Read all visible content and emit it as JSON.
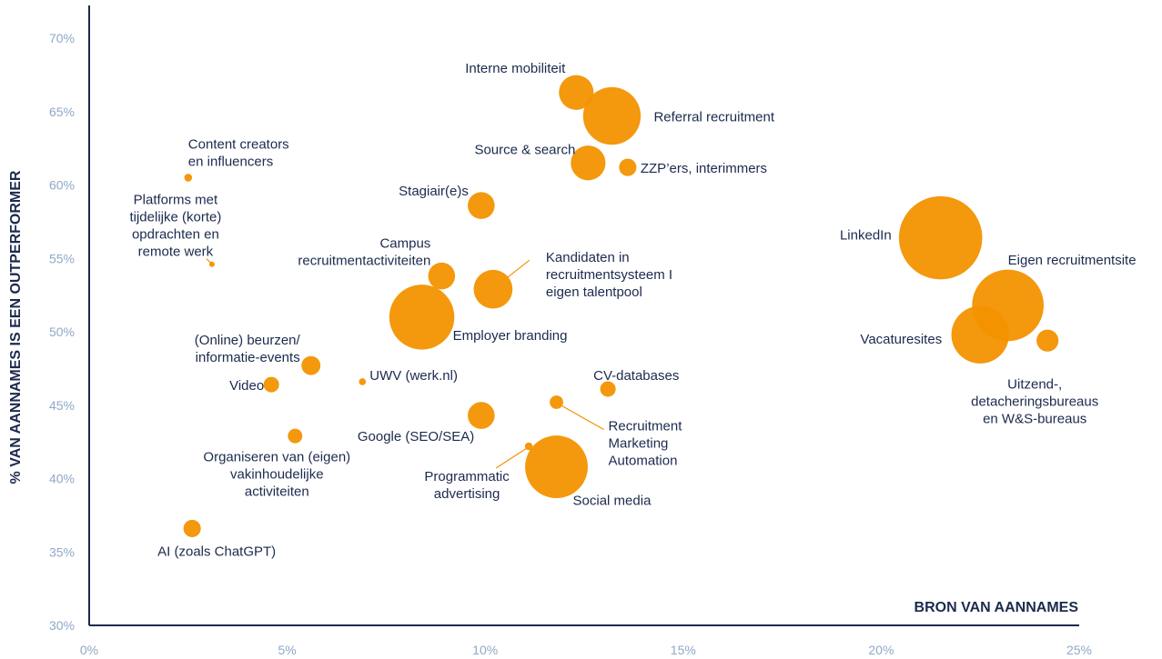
{
  "colors": {
    "bubble": "#f39200",
    "axis": "#1c2a4e",
    "tick": "#8fa8c8",
    "label": "#1c2a4e"
  },
  "chart_data": {
    "type": "scatter",
    "title": "",
    "xlabel": "BRON VAN AANNAMES",
    "ylabel": "% VAN AANNAMES IS EEN OUTPERFORMER",
    "xlim": [
      0,
      25
    ],
    "ylim": [
      30,
      71
    ],
    "x_ticks": [
      "0%",
      "5%",
      "10%",
      "15%",
      "20%",
      "25%"
    ],
    "y_ticks": [
      "30%",
      "35%",
      "40%",
      "45%",
      "50%",
      "55%",
      "60%",
      "65%",
      "70%"
    ],
    "grid": false,
    "points": [
      {
        "label": [
          "Interne mobiliteit"
        ],
        "x": 12.3,
        "y": 66.3,
        "size": 2.0
      },
      {
        "label": [
          "Referral recruitment"
        ],
        "x": 13.2,
        "y": 64.7,
        "size": 5.5
      },
      {
        "label": [
          "Source & search"
        ],
        "x": 12.6,
        "y": 61.5,
        "size": 2.0
      },
      {
        "label": [
          "ZZP’ers, interimmers"
        ],
        "x": 13.6,
        "y": 61.2,
        "size": 0.5
      },
      {
        "label": [
          "Content creators",
          "en influencers"
        ],
        "x": 2.5,
        "y": 60.5,
        "size": 0.1
      },
      {
        "label": [
          "Stagiair(e)s"
        ],
        "x": 9.9,
        "y": 58.6,
        "size": 1.2
      },
      {
        "label": [
          "Platforms met",
          "tijdelijke (korte)",
          "opdrachten en",
          "remote werk"
        ],
        "x": 3.1,
        "y": 54.6,
        "size": 0.05
      },
      {
        "label": [
          "Campus",
          "recruitmentactiviteiten"
        ],
        "x": 8.9,
        "y": 53.8,
        "size": 1.2
      },
      {
        "label": [
          "Kandidaten in",
          "recruitmentsysteem I",
          "eigen talentpool"
        ],
        "x": 10.2,
        "y": 52.9,
        "size": 2.5
      },
      {
        "label": [
          "Employer branding"
        ],
        "x": 8.4,
        "y": 51.0,
        "size": 7.0
      },
      {
        "label": [
          "(Online) beurzen/",
          "informatie-events"
        ],
        "x": 5.6,
        "y": 47.7,
        "size": 0.6
      },
      {
        "label": [
          "UWV (werk.nl)"
        ],
        "x": 6.9,
        "y": 46.6,
        "size": 0.08
      },
      {
        "label": [
          "Video"
        ],
        "x": 4.6,
        "y": 46.4,
        "size": 0.4
      },
      {
        "label": [
          "CV-databases"
        ],
        "x": 13.1,
        "y": 46.1,
        "size": 0.4
      },
      {
        "label": [
          "Recruitment",
          "Marketing",
          "Automation"
        ],
        "x": 11.8,
        "y": 45.2,
        "size": 0.3
      },
      {
        "label": [
          "Google (SEO/SEA)"
        ],
        "x": 9.9,
        "y": 44.3,
        "size": 1.2
      },
      {
        "label": [
          "Organiseren van (eigen)",
          "vakinhoudelijke",
          "activiteiten"
        ],
        "x": 5.2,
        "y": 42.9,
        "size": 0.35
      },
      {
        "label": [
          "Programmatic",
          "advertising"
        ],
        "x": 11.1,
        "y": 42.2,
        "size": 0.1
      },
      {
        "label": [
          "Social media"
        ],
        "x": 11.8,
        "y": 40.8,
        "size": 6.5
      },
      {
        "label": [
          "AI (zoals ChatGPT)"
        ],
        "x": 2.6,
        "y": 36.6,
        "size": 0.5
      },
      {
        "label": [
          "LinkedIn"
        ],
        "x": 21.5,
        "y": 56.4,
        "size": 11.5
      },
      {
        "label": [
          "Eigen recruitmentsite"
        ],
        "x": 23.2,
        "y": 51.8,
        "size": 8.5
      },
      {
        "label": [
          "Vacaturesites"
        ],
        "x": 22.5,
        "y": 49.8,
        "size": 5.5
      },
      {
        "label": [
          "Uitzend-,",
          "detacheringsbureaus",
          "en W&S-bureaus"
        ],
        "x": 24.2,
        "y": 49.4,
        "size": 0.8
      }
    ]
  }
}
